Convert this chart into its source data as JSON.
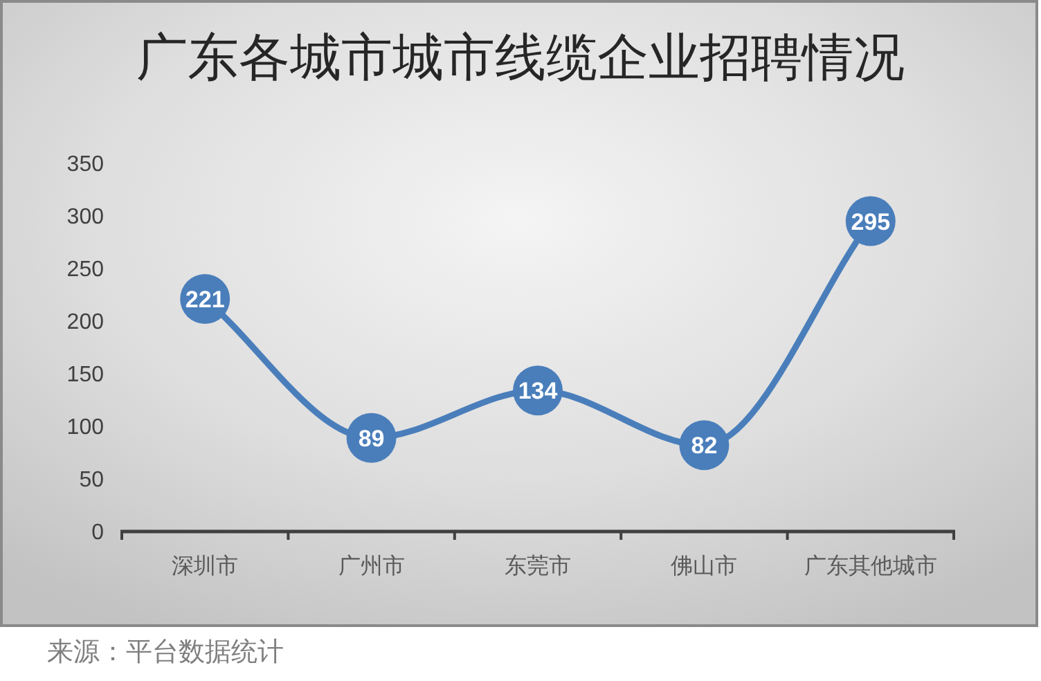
{
  "chart_data": {
    "type": "line",
    "title": "广东各城市城市线缆企业招聘情况",
    "categories": [
      "深圳市",
      "广州市",
      "东莞市",
      "佛山市",
      "广东其他城市"
    ],
    "series": [
      {
        "color": "#4a7ebb",
        "values": [
          221,
          89,
          134,
          82,
          295
        ]
      }
    ],
    "ylim": [
      0,
      350
    ],
    "yticks": [
      0,
      50,
      100,
      150,
      200,
      250,
      300,
      350
    ],
    "data_labels": true,
    "marker": "circle",
    "line_style": "solid",
    "grid": false,
    "annotations": [
      "来源：平台数据统计"
    ]
  }
}
